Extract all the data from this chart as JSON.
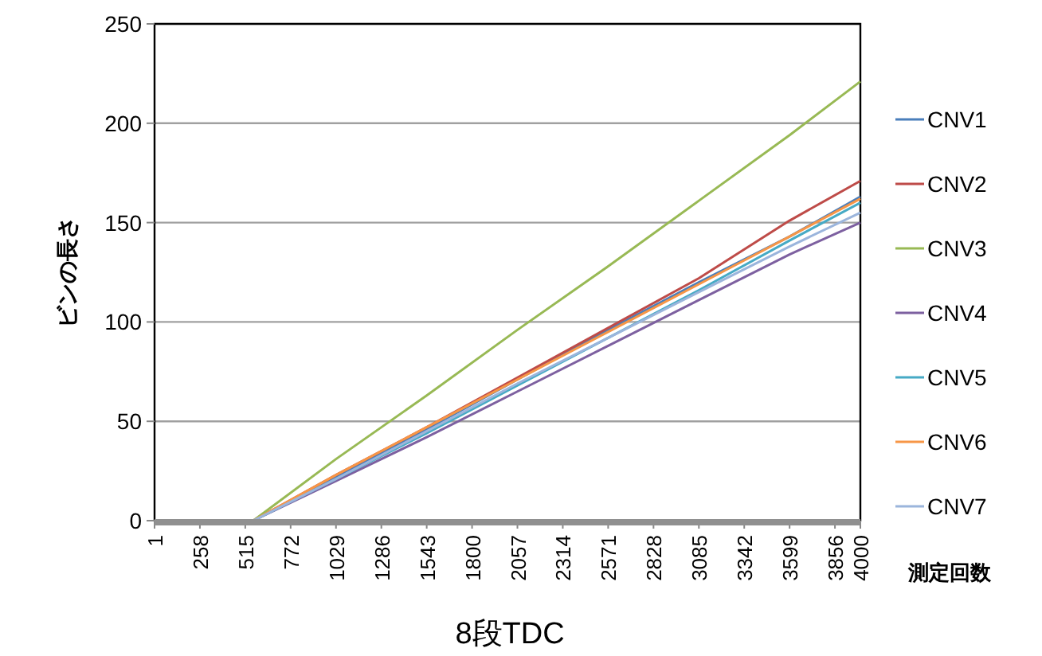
{
  "chart_data": {
    "type": "line",
    "xlabel": "測定回数",
    "ylabel": "ビンの長さ",
    "annotations": [
      "8段TDC"
    ],
    "x": [
      1,
      560,
      1029,
      1543,
      2057,
      2571,
      3085,
      3599,
      4000
    ],
    "series": [
      {
        "name": "CNV1",
        "color": "#4a7ebb",
        "values": [
          0,
          0,
          22,
          46,
          71,
          96,
          120,
          143,
          163
        ]
      },
      {
        "name": "CNV2",
        "color": "#be4b48",
        "values": [
          0,
          0,
          23,
          47,
          72,
          97,
          122,
          151,
          171
        ]
      },
      {
        "name": "CNV3",
        "color": "#98b954",
        "values": [
          0,
          0,
          31,
          63,
          96,
          128,
          161,
          194,
          221
        ]
      },
      {
        "name": "CNV4",
        "color": "#7d60a0",
        "values": [
          0,
          0,
          20,
          42,
          65,
          88,
          111,
          134,
          150
        ]
      },
      {
        "name": "CNV5",
        "color": "#46aac5",
        "values": [
          0,
          0,
          21,
          44,
          68,
          92,
          116,
          141,
          160
        ]
      },
      {
        "name": "CNV6",
        "color": "#f79646",
        "values": [
          0,
          0,
          23,
          47,
          71,
          95,
          119,
          143,
          162
        ]
      },
      {
        "name": "CNV7",
        "color": "#9bb5dc",
        "values": [
          0,
          0,
          21,
          45,
          69,
          92,
          115,
          138,
          155
        ]
      }
    ],
    "xlim": [
      1,
      4000
    ],
    "xticks": [
      1,
      258,
      515,
      772,
      1029,
      1286,
      1543,
      1800,
      2057,
      2314,
      2571,
      2828,
      3085,
      3342,
      3599,
      3856,
      4000
    ],
    "ylim": [
      0,
      250
    ],
    "yticks": [
      0,
      50,
      100,
      150,
      200,
      250
    ],
    "grid": "y",
    "legend": "right"
  }
}
